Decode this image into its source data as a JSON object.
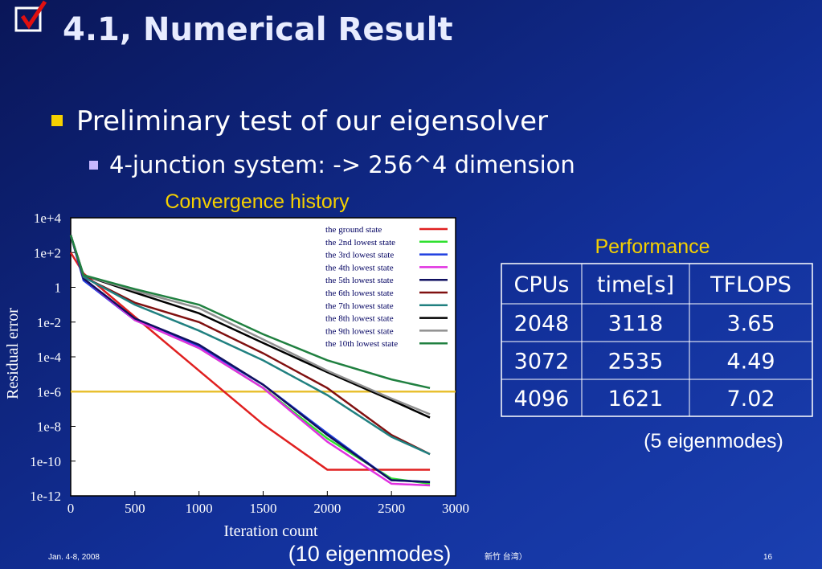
{
  "slide": {
    "title": "4.1, Numerical Result",
    "bullet": "Preliminary test of our eigensolver",
    "sub_bullet": "4-junction system: -> 256^4 dimension",
    "chart_caption": "(10 eigenmodes)",
    "table_title": "Performance",
    "table_caption": "(5 eigenmodes)",
    "footer_left": "Jan. 4-8, 2008",
    "footer_center": "新竹 台湾）",
    "footer_right": "16"
  },
  "table": {
    "header": [
      "CPUs",
      "time[s]",
      "TFLOPS"
    ],
    "rows": [
      [
        2048,
        3118,
        3.65
      ],
      [
        3072,
        2535,
        4.49
      ],
      [
        4096,
        1621,
        7.02
      ]
    ]
  },
  "chart_data": {
    "type": "line",
    "title": "Convergence history",
    "x_label": "Iteration count",
    "y_label": "Residual error",
    "log_y": true,
    "x": [
      0,
      100,
      500,
      1000,
      1500,
      2000,
      2500,
      2800
    ],
    "xlim": [
      0,
      3000
    ],
    "xticks": [
      0,
      500,
      1000,
      1500,
      2000,
      2500,
      3000
    ],
    "ylim": [
      1e-12,
      10000.0
    ],
    "yticks": [
      {
        "value": 10000,
        "label": "1e+4"
      },
      {
        "value": 100,
        "label": "1e+2"
      },
      1,
      {
        "value": 0.01,
        "label": "1e-2"
      },
      {
        "value": 0.0001,
        "label": "1e-4"
      },
      {
        "value": 1e-06,
        "label": "1e-6"
      },
      {
        "value": 1e-08,
        "label": "1e-8"
      },
      {
        "value": 1e-10,
        "label": "1e-10"
      },
      {
        "value": 1e-12,
        "label": "1e-12"
      }
    ],
    "reference_line": {
      "value": 1e-06,
      "color": "#e8c030"
    },
    "legend": "top-right",
    "series": [
      {
        "name": "the ground state",
        "color": "#e02020",
        "values": [
          100,
          6.3,
          0.02,
          1.6e-05,
          1.3e-08,
          3.2e-11,
          3.2e-11,
          3.2e-11
        ]
      },
      {
        "name": "the 2nd lowest state",
        "color": "#30e030",
        "values": [
          1000,
          3.2,
          0.013,
          0.00032,
          1.6e-06,
          2e-09,
          1e-11,
          5e-12
        ]
      },
      {
        "name": "the 3rd lowest state",
        "color": "#2040e0",
        "values": [
          1000,
          2.5,
          0.013,
          0.0004,
          2.5e-06,
          4e-09,
          8e-12,
          6.3e-12
        ]
      },
      {
        "name": "the 4th lowest state",
        "color": "#e030e0",
        "values": [
          1000,
          3.2,
          0.013,
          0.00032,
          1.6e-06,
          1.3e-09,
          5e-12,
          4e-12
        ]
      },
      {
        "name": "the 5th lowest state",
        "color": "#101060",
        "values": [
          1000,
          3.2,
          0.016,
          0.0005,
          2.5e-06,
          3.2e-09,
          8e-12,
          6.3e-12
        ]
      },
      {
        "name": "the 6th lowest state",
        "color": "#801010",
        "values": [
          1000,
          4,
          0.13,
          0.01,
          0.00016,
          1.6e-06,
          3.2e-09,
          2.5e-10
        ]
      },
      {
        "name": "the 7th lowest state",
        "color": "#208080",
        "values": [
          1000,
          4,
          0.1,
          0.0032,
          6.3e-05,
          6.3e-07,
          2.5e-09,
          2.5e-10
        ]
      },
      {
        "name": "the 8th lowest state",
        "color": "#000000",
        "values": [
          1000,
          5,
          0.5,
          0.032,
          0.00063,
          1.3e-05,
          3.2e-07,
          3.2e-08
        ]
      },
      {
        "name": "the 9th lowest state",
        "color": "#909090",
        "values": [
          1000,
          5,
          0.63,
          0.063,
          0.001,
          1.6e-05,
          4e-07,
          5e-08
        ]
      },
      {
        "name": "the 10th lowest state",
        "color": "#208040",
        "values": [
          1000,
          5,
          0.79,
          0.1,
          0.002,
          6.3e-05,
          5e-06,
          1.6e-06
        ]
      }
    ]
  }
}
